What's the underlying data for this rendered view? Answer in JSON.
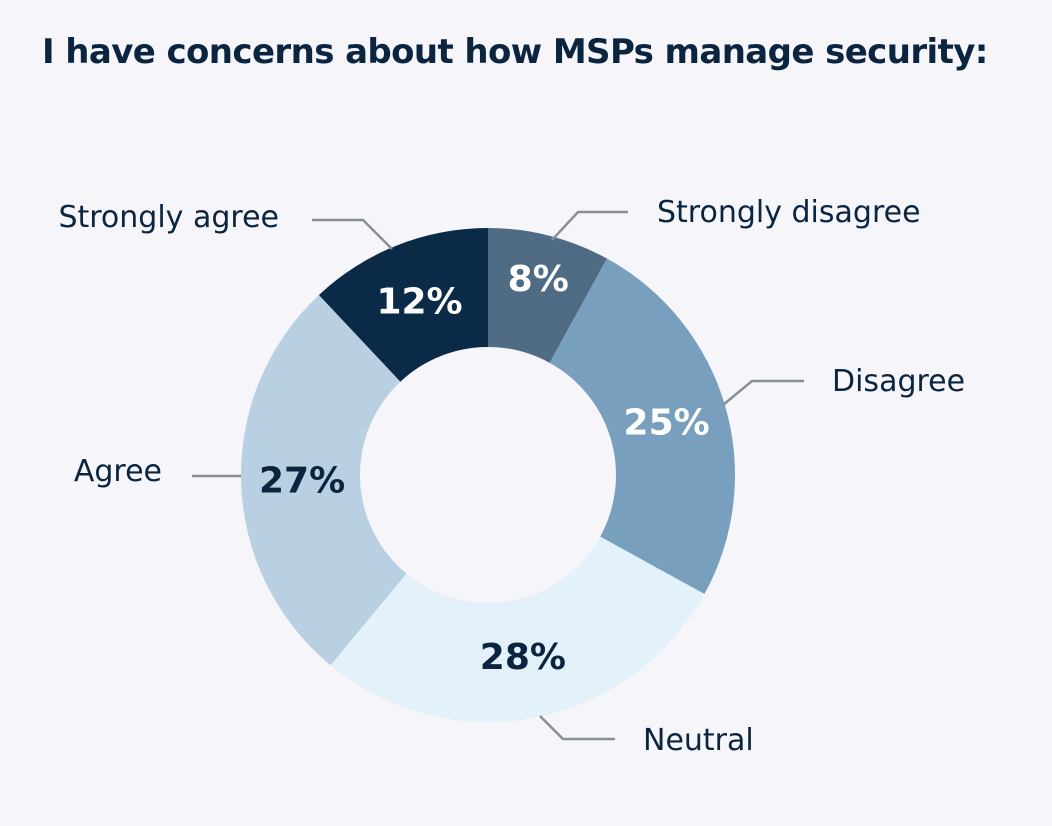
{
  "chart_data": {
    "type": "pie",
    "style": "donut",
    "title": "I have concerns about how MSPs manage security:",
    "categories": [
      "Strongly disagree",
      "Disagree",
      "Neutral",
      "Agree",
      "Strongly agree"
    ],
    "values": [
      8,
      25,
      28,
      27,
      12
    ],
    "labels": [
      "8%",
      "25%",
      "28%",
      "27%",
      "12%"
    ],
    "colors": [
      "#506b84",
      "#789fbe",
      "#e3f1fa",
      "#b8d0e1",
      "#0a2a48"
    ],
    "label_colors": [
      "#ffffff",
      "#ffffff",
      "#0b2540",
      "#0b2540",
      "#ffffff"
    ],
    "start": "12 o'clock",
    "direction": "clockwise",
    "legend": "none"
  }
}
